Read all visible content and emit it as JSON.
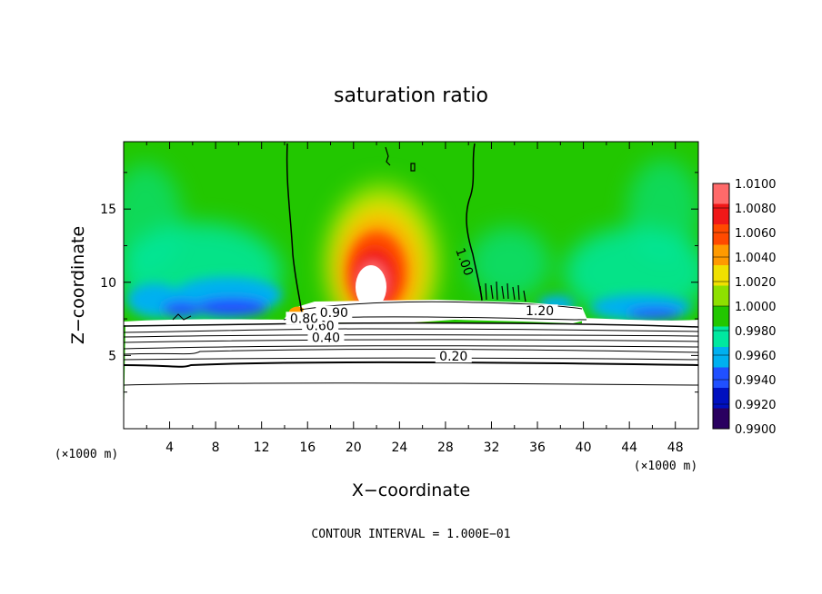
{
  "chart_data": {
    "type": "heatmap",
    "title": "saturation ratio",
    "xlabel": "X−coordinate",
    "ylabel": "Z−coordinate",
    "x_unit": "(×1000 m)",
    "z_unit": "(×1000 m)",
    "xlim": [
      0,
      50
    ],
    "ylim": [
      0,
      19.6
    ],
    "x_ticks": [
      4,
      8,
      12,
      16,
      20,
      24,
      28,
      32,
      36,
      40,
      44,
      48
    ],
    "y_ticks": [
      5,
      10,
      15
    ],
    "colorbar": {
      "min": 0.99,
      "max": 1.01,
      "labels": [
        "1.0100",
        "1.0080",
        "1.0060",
        "1.0040",
        "1.0020",
        "1.0000",
        "0.9980",
        "0.9960",
        "0.9940",
        "0.9920",
        "0.9900"
      ],
      "colors": [
        "#ff6a6a",
        "#f01818",
        "#ff4a00",
        "#ff9a00",
        "#f0e000",
        "#8ee000",
        "#22c700",
        "#00e8a0",
        "#00b0f0",
        "#2050ff",
        "#0010c0",
        "#2a0060"
      ]
    },
    "contour_interval": "CONTOUR INTERVAL = 1.000E−01",
    "contour_labels": [
      {
        "text": "0.20",
        "x": 28.7,
        "z": 4.7
      },
      {
        "text": "0.40",
        "x": 17.6,
        "z": 6.0
      },
      {
        "text": "0.60",
        "x": 17.1,
        "z": 6.8
      },
      {
        "text": "0.80",
        "x": 15.7,
        "z": 7.3
      },
      {
        "text": "0.90",
        "x": 18.3,
        "z": 7.7
      },
      {
        "text": "1.20",
        "x": 36.2,
        "z": 7.8
      },
      {
        "text": "1.00",
        "x": 29.3,
        "z": 11.3
      }
    ]
  }
}
